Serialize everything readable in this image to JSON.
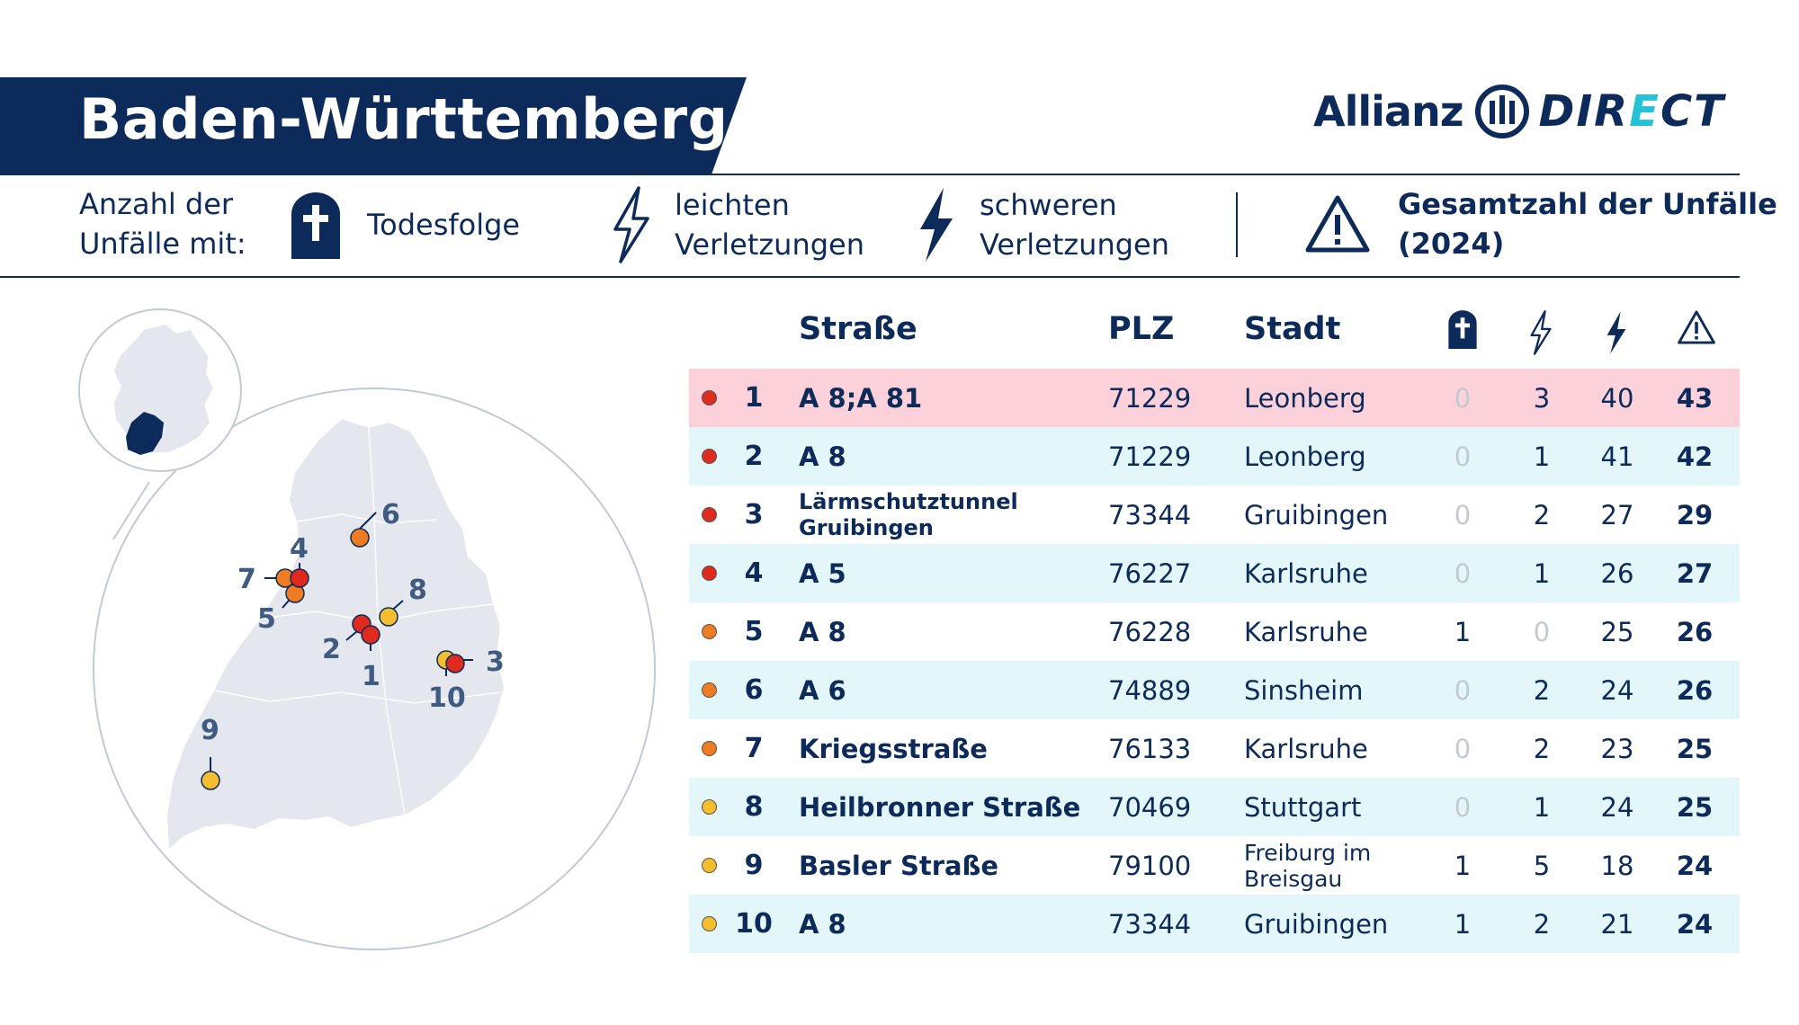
{
  "header": {
    "title": "Baden-Württemberg",
    "brand": {
      "name": "Allianz",
      "sub_prefix": "DIR",
      "sub_accent": "E",
      "sub_suffix": "CT"
    }
  },
  "legend": {
    "label_line1": "Anzahl der",
    "label_line2": "Unfälle mit:",
    "death": "Todesfolge",
    "light_line1": "leichten",
    "light_line2": "Verletzungen",
    "heavy_line1": "schweren",
    "heavy_line2": "Verletzungen",
    "total_line1": "Gesamtzahl der Unfälle",
    "total_line2": "(2024)"
  },
  "table": {
    "headers": {
      "street": "Straße",
      "plz": "PLZ",
      "city": "Stadt"
    },
    "rows": [
      {
        "rank": "1",
        "street": "A 8;A 81",
        "plz": "71229",
        "city": "Leonberg",
        "death": "0",
        "light": "3",
        "heavy": "40",
        "total": "43",
        "severity": "red"
      },
      {
        "rank": "2",
        "street": "A 8",
        "plz": "71229",
        "city": "Leonberg",
        "death": "0",
        "light": "1",
        "heavy": "41",
        "total": "42",
        "severity": "red"
      },
      {
        "rank": "3",
        "street": "Lärmschutztunnel Gruibingen",
        "plz": "73344",
        "city": "Gruibingen",
        "death": "0",
        "light": "2",
        "heavy": "27",
        "total": "29",
        "severity": "red"
      },
      {
        "rank": "4",
        "street": "A 5",
        "plz": "76227",
        "city": "Karlsruhe",
        "death": "0",
        "light": "1",
        "heavy": "26",
        "total": "27",
        "severity": "red"
      },
      {
        "rank": "5",
        "street": "A 8",
        "plz": "76228",
        "city": "Karlsruhe",
        "death": "1",
        "light": "0",
        "heavy": "25",
        "total": "26",
        "severity": "orange"
      },
      {
        "rank": "6",
        "street": "A 6",
        "plz": "74889",
        "city": "Sinsheim",
        "death": "0",
        "light": "2",
        "heavy": "24",
        "total": "26",
        "severity": "orange"
      },
      {
        "rank": "7",
        "street": "Kriegsstraße",
        "plz": "76133",
        "city": "Karlsruhe",
        "death": "0",
        "light": "2",
        "heavy": "23",
        "total": "25",
        "severity": "orange"
      },
      {
        "rank": "8",
        "street": "Heilbronner Straße",
        "plz": "70469",
        "city": "Stuttgart",
        "death": "0",
        "light": "1",
        "heavy": "24",
        "total": "25",
        "severity": "yellow"
      },
      {
        "rank": "9",
        "street": "Basler Straße",
        "plz": "79100",
        "city": "Freiburg im Breisgau",
        "death": "1",
        "light": "5",
        "heavy": "18",
        "total": "24",
        "severity": "yellow"
      },
      {
        "rank": "10",
        "street": "A 8",
        "plz": "73344",
        "city": "Gruibingen",
        "death": "1",
        "light": "2",
        "heavy": "21",
        "total": "24",
        "severity": "yellow"
      }
    ]
  },
  "map": {
    "labels": [
      "1",
      "2",
      "3",
      "4",
      "5",
      "6",
      "7",
      "8",
      "9",
      "10"
    ]
  },
  "colors": {
    "navy": "#0c2a5a",
    "red": "#e02a1e",
    "orange": "#f07c22",
    "yellow": "#f4be2c",
    "highlight_row": "#fcd1da",
    "alt_row": "#e3f7fa",
    "map_fill": "#e4e8ee",
    "accent": "#24c2d6"
  },
  "icons": {
    "death": "tombstone-cross-icon",
    "light": "lightning-outline-icon",
    "heavy": "lightning-filled-icon",
    "total": "warning-triangle-icon"
  }
}
